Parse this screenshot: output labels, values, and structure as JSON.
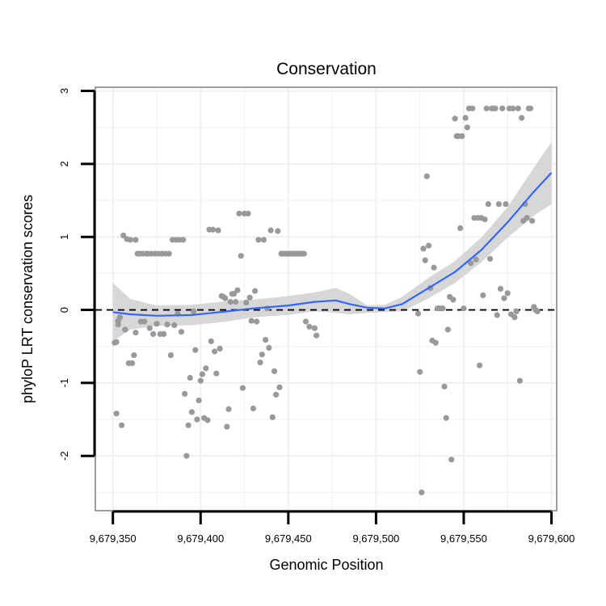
{
  "chart_data": {
    "type": "scatter",
    "title": "Conservation",
    "xlabel": "Genomic Position",
    "ylabel": "phyloP LRT conservation scores",
    "xlim": [
      9679340,
      9679603
    ],
    "ylim": [
      -2.75,
      3.05
    ],
    "x_ticks": [
      9679350,
      9679400,
      9679450,
      9679500,
      9679550,
      9679600
    ],
    "x_tick_labels": [
      "9,679,350",
      "9,679,400",
      "9,679,450",
      "9,679,500",
      "9,679,550",
      "9,679,600"
    ],
    "y_ticks": [
      -2,
      -1,
      0,
      1,
      2,
      3
    ],
    "y_tick_labels": [
      "-2",
      "-1",
      "0",
      "1",
      "2",
      "3"
    ],
    "reference_line": {
      "y": 0,
      "style": "dashed",
      "color": "#000000"
    },
    "colors": {
      "points": "#999999",
      "smooth": "#3366ff",
      "ribbon": "#d0d0d0",
      "grid": "#f0f0f0",
      "border": "#7f7f7f"
    },
    "points": [
      [
        9679351,
        -0.45
      ],
      [
        9679352,
        -1.42
      ],
      [
        9679352,
        -0.44
      ],
      [
        9679353,
        -0.15
      ],
      [
        9679353,
        -0.2
      ],
      [
        9679354,
        -0.1
      ],
      [
        9679355,
        -1.58
      ],
      [
        9679356,
        1.02
      ],
      [
        9679357,
        -0.27
      ],
      [
        9679358,
        0.97
      ],
      [
        9679359,
        -0.73
      ],
      [
        9679360,
        0.96
      ],
      [
        9679361,
        -0.73
      ],
      [
        9679362,
        -0.62
      ],
      [
        9679363,
        0.96
      ],
      [
        9679363,
        -0.31
      ],
      [
        9679364,
        0.77
      ],
      [
        9679365,
        0.77
      ],
      [
        9679366,
        -0.16
      ],
      [
        9679367,
        0.77
      ],
      [
        9679368,
        -0.16
      ],
      [
        9679369,
        0.77
      ],
      [
        9679370,
        0.77
      ],
      [
        9679371,
        -0.25
      ],
      [
        9679372,
        0.77
      ],
      [
        9679373,
        -0.33
      ],
      [
        9679374,
        0.77
      ],
      [
        9679375,
        -0.19
      ],
      [
        9679376,
        0.77
      ],
      [
        9679377,
        -0.33
      ],
      [
        9679378,
        0.77
      ],
      [
        9679379,
        -0.33
      ],
      [
        9679380,
        0.77
      ],
      [
        9679381,
        -0.2
      ],
      [
        9679382,
        0.77
      ],
      [
        9679383,
        -0.62
      ],
      [
        9679384,
        0.96
      ],
      [
        9679385,
        -0.21
      ],
      [
        9679386,
        0.96
      ],
      [
        9679387,
        -0.05
      ],
      [
        9679388,
        0.96
      ],
      [
        9679389,
        -0.3
      ],
      [
        9679390,
        0.96
      ],
      [
        9679391,
        -1.15
      ],
      [
        9679392,
        -2.0
      ],
      [
        9679393,
        -1.58
      ],
      [
        9679394,
        -0.93
      ],
      [
        9679395,
        -1.4
      ],
      [
        9679396,
        -0.02
      ],
      [
        9679397,
        -0.55
      ],
      [
        9679398,
        -1.5
      ],
      [
        9679399,
        -1.24
      ],
      [
        9679400,
        -0.97
      ],
      [
        9679401,
        -0.88
      ],
      [
        9679402,
        -1.48
      ],
      [
        9679403,
        -0.8
      ],
      [
        9679404,
        -1.51
      ],
      [
        9679405,
        1.1
      ],
      [
        9679406,
        -0.43
      ],
      [
        9679407,
        1.1
      ],
      [
        9679408,
        -0.57
      ],
      [
        9679409,
        -0.87
      ],
      [
        9679410,
        1.09
      ],
      [
        9679411,
        -0.53
      ],
      [
        9679412,
        0.19
      ],
      [
        9679413,
        0.18
      ],
      [
        9679414,
        0.16
      ],
      [
        9679415,
        -1.6
      ],
      [
        9679416,
        -1.36
      ],
      [
        9679417,
        0.11
      ],
      [
        9679418,
        0.22
      ],
      [
        9679419,
        0.22
      ],
      [
        9679420,
        0.11
      ],
      [
        9679421,
        0.27
      ],
      [
        9679422,
        1.32
      ],
      [
        9679423,
        0.74
      ],
      [
        9679424,
        -1.07
      ],
      [
        9679425,
        1.32
      ],
      [
        9679426,
        0.1
      ],
      [
        9679427,
        1.32
      ],
      [
        9679428,
        0.17
      ],
      [
        9679429,
        -0.15
      ],
      [
        9679430,
        -1.35
      ],
      [
        9679431,
        0.26
      ],
      [
        9679432,
        -0.16
      ],
      [
        9679433,
        0.96
      ],
      [
        9679434,
        -0.72
      ],
      [
        9679435,
        -0.61
      ],
      [
        9679436,
        0.96
      ],
      [
        9679437,
        -0.41
      ],
      [
        9679438,
        0.02
      ],
      [
        9679439,
        -0.52
      ],
      [
        9679440,
        1.09
      ],
      [
        9679441,
        -1.47
      ],
      [
        9679442,
        -0.84
      ],
      [
        9679443,
        -1.16
      ],
      [
        9679444,
        1.08
      ],
      [
        9679445,
        -1.06
      ],
      [
        9679446,
        0.77
      ],
      [
        9679447,
        0.77
      ],
      [
        9679448,
        0.77
      ],
      [
        9679449,
        0.77
      ],
      [
        9679450,
        0.77
      ],
      [
        9679451,
        0.77
      ],
      [
        9679452,
        0.77
      ],
      [
        9679453,
        0.77
      ],
      [
        9679454,
        0.77
      ],
      [
        9679455,
        0.77
      ],
      [
        9679456,
        0.77
      ],
      [
        9679457,
        0.77
      ],
      [
        9679458,
        0.77
      ],
      [
        9679459,
        0.77
      ],
      [
        9679460,
        -0.16
      ],
      [
        9679462,
        -0.23
      ],
      [
        9679465,
        -0.25
      ],
      [
        9679466,
        -0.35
      ],
      [
        9679524,
        -0.05
      ],
      [
        9679525,
        -0.85
      ],
      [
        9679526,
        -2.5
      ],
      [
        9679527,
        0.84
      ],
      [
        9679528,
        0.68
      ],
      [
        9679529,
        1.83
      ],
      [
        9679530,
        0.88
      ],
      [
        9679531,
        0.3
      ],
      [
        9679532,
        -0.42
      ],
      [
        9679533,
        0.58
      ],
      [
        9679534,
        -0.45
      ],
      [
        9679535,
        0.02
      ],
      [
        9679536,
        0.02
      ],
      [
        9679537,
        0.02
      ],
      [
        9679538,
        0.02
      ],
      [
        9679539,
        -1.05
      ],
      [
        9679540,
        -1.48
      ],
      [
        9679541,
        -0.27
      ],
      [
        9679542,
        0.18
      ],
      [
        9679543,
        -2.05
      ],
      [
        9679544,
        0.14
      ],
      [
        9679545,
        2.62
      ],
      [
        9679546,
        2.38
      ],
      [
        9679547,
        2.38
      ],
      [
        9679548,
        1.12
      ],
      [
        9679549,
        2.38
      ],
      [
        9679550,
        0.02
      ],
      [
        9679551,
        2.63
      ],
      [
        9679552,
        2.5
      ],
      [
        9679553,
        2.76
      ],
      [
        9679554,
        0.64
      ],
      [
        9679555,
        2.76
      ],
      [
        9679556,
        1.26
      ],
      [
        9679557,
        0.69
      ],
      [
        9679558,
        1.26
      ],
      [
        9679559,
        -0.76
      ],
      [
        9679560,
        1.26
      ],
      [
        9679561,
        0.2
      ],
      [
        9679562,
        1.24
      ],
      [
        9679563,
        2.76
      ],
      [
        9679564,
        1.45
      ],
      [
        9679565,
        0.7
      ],
      [
        9679566,
        2.76
      ],
      [
        9679567,
        2.76
      ],
      [
        9679568,
        2.76
      ],
      [
        9679569,
        -0.07
      ],
      [
        9679570,
        1.45
      ],
      [
        9679571,
        0.29
      ],
      [
        9679572,
        2.76
      ],
      [
        9679573,
        0.16
      ],
      [
        9679574,
        1.45
      ],
      [
        9679575,
        0.23
      ],
      [
        9679576,
        2.76
      ],
      [
        9679577,
        -0.06
      ],
      [
        9679578,
        2.76
      ],
      [
        9679579,
        -0.1
      ],
      [
        9679580,
        -0.02
      ],
      [
        9679581,
        2.76
      ],
      [
        9679582,
        -0.97
      ],
      [
        9679583,
        2.63
      ],
      [
        9679584,
        1.22
      ],
      [
        9679585,
        1.45
      ],
      [
        9679586,
        1.26
      ],
      [
        9679587,
        2.76
      ],
      [
        9679588,
        2.76
      ],
      [
        9679589,
        1.22
      ],
      [
        9679590,
        0.04
      ],
      [
        9679591,
        0.0
      ],
      [
        9679592,
        -0.02
      ]
    ],
    "smooth_line": [
      [
        9679350,
        -0.03
      ],
      [
        9679360,
        -0.06
      ],
      [
        9679375,
        -0.08
      ],
      [
        9679395,
        -0.07
      ],
      [
        9679415,
        -0.02
      ],
      [
        9679430,
        0.02
      ],
      [
        9679450,
        0.06
      ],
      [
        9679465,
        0.11
      ],
      [
        9679477,
        0.13
      ],
      [
        9679485,
        0.08
      ],
      [
        9679495,
        0.03
      ],
      [
        9679505,
        0.02
      ],
      [
        9679515,
        0.08
      ],
      [
        9679530,
        0.3
      ],
      [
        9679545,
        0.52
      ],
      [
        9679560,
        0.82
      ],
      [
        9679575,
        1.2
      ],
      [
        9679590,
        1.62
      ],
      [
        9679600,
        1.88
      ]
    ],
    "ribbon_upper": [
      [
        9679350,
        0.37
      ],
      [
        9679360,
        0.15
      ],
      [
        9679375,
        0.06
      ],
      [
        9679395,
        0.07
      ],
      [
        9679415,
        0.12
      ],
      [
        9679430,
        0.14
      ],
      [
        9679450,
        0.19
      ],
      [
        9679465,
        0.24
      ],
      [
        9679477,
        0.3
      ],
      [
        9679485,
        0.22
      ],
      [
        9679495,
        0.06
      ],
      [
        9679505,
        0.07
      ],
      [
        9679515,
        0.18
      ],
      [
        9679530,
        0.44
      ],
      [
        9679545,
        0.67
      ],
      [
        9679560,
        0.99
      ],
      [
        9679575,
        1.41
      ],
      [
        9679590,
        1.95
      ],
      [
        9679600,
        2.3
      ]
    ],
    "ribbon_lower": [
      [
        9679350,
        -0.43
      ],
      [
        9679360,
        -0.27
      ],
      [
        9679375,
        -0.22
      ],
      [
        9679395,
        -0.21
      ],
      [
        9679415,
        -0.16
      ],
      [
        9679430,
        -0.1
      ],
      [
        9679450,
        -0.07
      ],
      [
        9679465,
        -0.02
      ],
      [
        9679477,
        -0.04
      ],
      [
        9679485,
        -0.06
      ],
      [
        9679495,
        -0.04
      ],
      [
        9679505,
        -0.03
      ],
      [
        9679515,
        -0.02
      ],
      [
        9679530,
        0.16
      ],
      [
        9679545,
        0.37
      ],
      [
        9679560,
        0.65
      ],
      [
        9679575,
        0.99
      ],
      [
        9679590,
        1.29
      ],
      [
        9679600,
        1.45
      ]
    ]
  }
}
